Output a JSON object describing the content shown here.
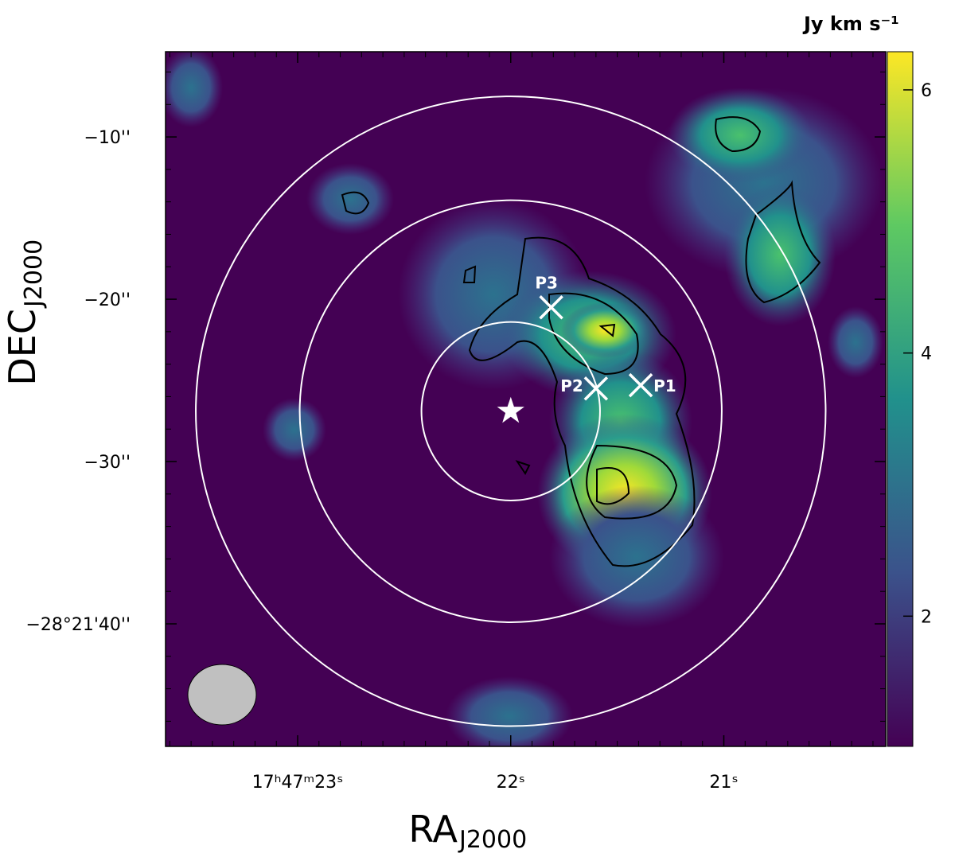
{
  "chart_data": {
    "type": "image",
    "x_label": "RA",
    "x_label_sub": "J2000",
    "y_label": "DEC",
    "y_label_sub": "J2000",
    "xlim": [
      23.62,
      20.24
    ],
    "xticks": [
      {
        "value": 23,
        "label": "17ʰ47ᵐ23ˢ"
      },
      {
        "value": 22,
        "label": "22ˢ"
      },
      {
        "value": 21,
        "label": "21ˢ"
      }
    ],
    "ylim": [
      -47.55,
      -4.75
    ],
    "yticks": [
      {
        "value": -10,
        "label": "−10''"
      },
      {
        "value": -20,
        "label": "−20''"
      },
      {
        "value": -30,
        "label": "−30''"
      },
      {
        "value": -40,
        "label": "−28°21'40''"
      }
    ],
    "colorbar": {
      "label": "Jy km s⁻¹",
      "ylim": [
        1.01,
        6.29
      ],
      "yticks": [
        2,
        4,
        6
      ]
    },
    "star": {
      "x": 22.0,
      "y": -26.9
    },
    "circle_radii": [
      5.5,
      13.0,
      19.4
    ],
    "markers": [
      {
        "name": "P1",
        "x": 21.39,
        "y": -25.3
      },
      {
        "name": "P2",
        "x": 21.6,
        "y": -25.5
      },
      {
        "name": "P3",
        "x": 21.81,
        "y": -20.5
      }
    ]
  }
}
